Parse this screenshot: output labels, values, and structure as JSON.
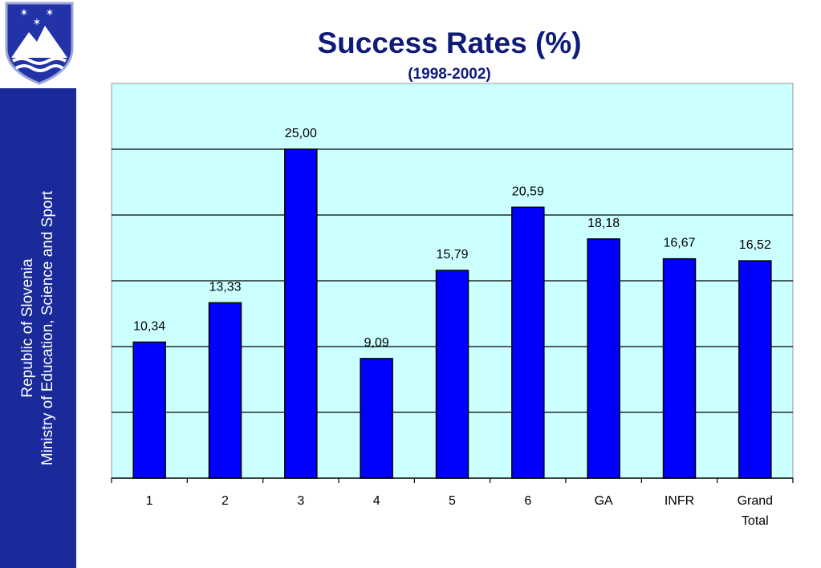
{
  "sidebar": {
    "line1": "Republic of Slovenia",
    "line2": "Ministry of Education, Science and Sport"
  },
  "colors": {
    "sidebar": "#1a2a9a",
    "title": "#0f1b7a",
    "plot_background": "#ccffff",
    "bar": "#0000ff"
  },
  "chart_data": {
    "type": "bar",
    "title": "Success Rates (%)",
    "subtitle": "(1998-2002)",
    "categories": [
      "1",
      "2",
      "3",
      "4",
      "5",
      "6",
      "GA",
      "INFR",
      "Grand Total"
    ],
    "values": [
      10.34,
      13.33,
      25.0,
      9.09,
      15.79,
      20.59,
      18.18,
      16.67,
      16.52
    ],
    "data_labels": [
      "10,34",
      "13,33",
      "25,00",
      "9,09",
      "15,79",
      "20,59",
      "18,18",
      "16,67",
      "16,52"
    ],
    "ylim": [
      0,
      30
    ],
    "gridlines": [
      5,
      10,
      15,
      20,
      25
    ],
    "grid": true,
    "xlabel": "",
    "ylabel": ""
  }
}
